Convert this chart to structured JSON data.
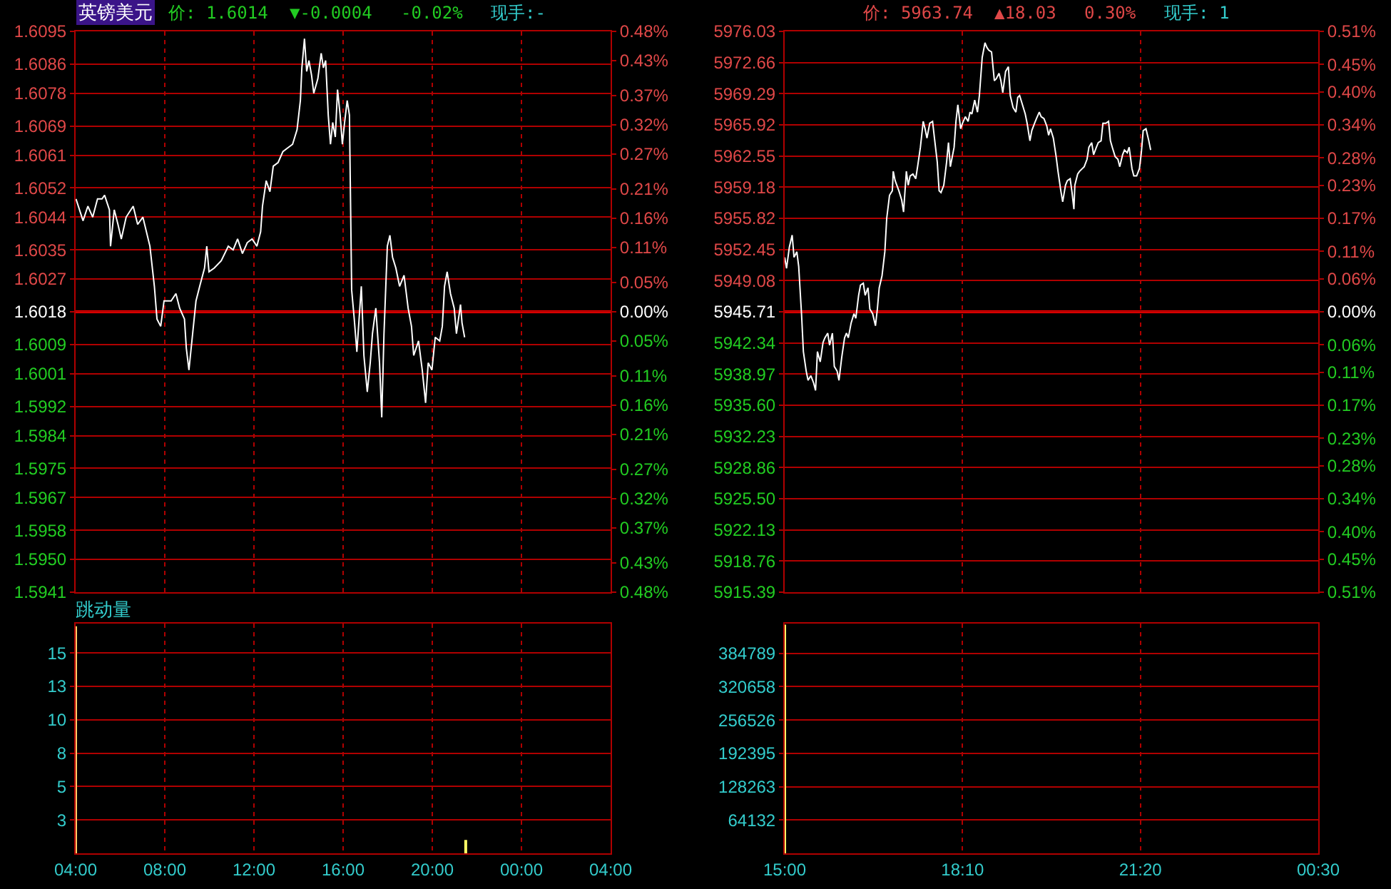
{
  "chart_data": [
    {
      "type": "line",
      "title": "英镑美元",
      "annotations": [
        "价: 1.6014",
        "▼-0.0004",
        "-0.02%",
        "现手:-"
      ],
      "x": [
        "--01-01T04:01",
        "--01-01T04:20",
        "--01-01T04:33",
        "--01-01T04:46",
        "--01-01T04:59",
        "--01-01T05:11",
        "--01-01T05:18",
        "--01-01T05:31",
        "--01-01T05:34",
        "--01-01T05:44",
        "--01-01T05:54",
        "--01-01T06:03",
        "--01-01T06:16",
        "--01-01T06:35",
        "--01-01T06:47",
        "--01-01T07:01",
        "--01-01T07:20",
        "--01-01T07:32",
        "--01-01T07:39",
        "--01-01T07:49",
        "--01-01T07:58",
        "--01-01T08:17",
        "--01-01T08:30",
        "--01-01T08:40",
        "--01-01T08:53",
        "--01-01T08:58",
        "--01-01T09:05",
        "--01-01T09:15",
        "--01-01T09:24",
        "--01-01T09:34",
        "--01-01T09:47",
        "--01-01T09:53",
        "--01-01T09:59",
        "--01-01T10:13",
        "--01-01T10:32",
        "--01-01T10:51",
        "--01-01T11:04",
        "--01-01T11:16",
        "--01-01T11:29",
        "--01-01T11:42",
        "--01-01T11:55",
        "--01-01T12:08",
        "--01-01T12:18",
        "--01-01T12:23",
        "--01-01T12:33",
        "--01-01T12:43",
        "--01-01T12:52",
        "--01-01T13:05",
        "--01-01T13:18",
        "--01-01T13:31",
        "--01-01T13:44",
        "--01-01T13:56",
        "--01-01T14:05",
        "--01-01T14:09",
        "--01-01T14:16",
        "--01-01T14:22",
        "--01-01T14:28",
        "--01-01T14:35",
        "--01-01T14:41",
        "--01-01T14:52",
        "--01-01T15:01",
        "--01-01T15:07",
        "--01-01T15:13",
        "--01-01T15:20",
        "--01-01T15:26",
        "--01-01T15:32",
        "--01-01T15:39",
        "--01-01T15:45",
        "--01-01T15:52",
        "--01-01T15:58",
        "--01-01T16:04",
        "--01-01T16:11",
        "--01-01T16:17",
        "--01-01T16:23",
        "--01-01T16:30",
        "--01-01T16:37",
        "--01-01T16:49",
        "--01-01T16:56",
        "--01-01T17:05",
        "--01-01T17:13",
        "--01-01T17:19",
        "--01-01T17:28",
        "--01-01T17:38",
        "--01-01T17:44",
        "--01-01T17:50",
        "--01-01T17:59",
        "--01-01T18:06",
        "--01-01T18:13",
        "--01-01T18:22",
        "--01-01T18:32",
        "--01-01T18:44",
        "--01-01T18:55",
        "--01-01T19:04",
        "--01-01T19:10",
        "--01-01T19:23",
        "--01-01T19:33",
        "--01-01T19:42",
        "--01-01T19:49",
        "--01-01T19:59",
        "--01-01T20:08",
        "--01-01T20:20",
        "--01-01T20:27",
        "--01-01T20:33",
        "--01-01T20:40",
        "--01-01T20:49",
        "--01-01T20:59",
        "--01-01T21:05",
        "--01-01T21:16",
        "--01-01T21:20",
        "--01-01T21:27"
      ],
      "series": [
        {
          "color": "#ffffff",
          "values": [
            1.6049,
            1.6043,
            1.6047,
            1.6044,
            1.6049,
            1.6049,
            1.605,
            1.6046,
            1.6036,
            1.6046,
            1.6042,
            1.6038,
            1.6044,
            1.6047,
            1.6042,
            1.6044,
            1.6036,
            1.6025,
            1.6016,
            1.6014,
            1.6021,
            1.6021,
            1.6023,
            1.6019,
            1.6016,
            1.6008,
            1.6002,
            1.6012,
            1.6021,
            1.6025,
            1.603,
            1.6036,
            1.6029,
            1.603,
            1.6032,
            1.6036,
            1.6035,
            1.6038,
            1.6034,
            1.6037,
            1.6038,
            1.6036,
            1.604,
            1.6047,
            1.6054,
            1.6051,
            1.6058,
            1.6059,
            1.6062,
            1.6063,
            1.6064,
            1.6068,
            1.6076,
            1.6085,
            1.6093,
            1.6084,
            1.6087,
            1.6083,
            1.6078,
            1.6082,
            1.6089,
            1.6085,
            1.6087,
            1.6072,
            1.6064,
            1.607,
            1.6066,
            1.6079,
            1.6072,
            1.6064,
            1.607,
            1.6076,
            1.6072,
            1.6024,
            1.6016,
            1.6007,
            1.6025,
            1.6006,
            1.5996,
            1.6004,
            1.6012,
            1.6019,
            1.6004,
            1.5989,
            1.6012,
            1.6036,
            1.6039,
            1.6033,
            1.603,
            1.6025,
            1.6028,
            1.6019,
            1.6014,
            1.6006,
            1.601,
            1.6002,
            1.5993,
            1.6004,
            1.6002,
            1.6011,
            1.601,
            1.6014,
            1.6025,
            1.6029,
            1.6023,
            1.6019,
            1.6012,
            1.602,
            1.6015,
            1.6011
          ]
        }
      ],
      "xlim": [
        "--01-01T04:00",
        "--01-02T04:00"
      ],
      "xticks": [
        {
          "value": "--01-01T04:00",
          "label": "04:00"
        },
        {
          "value": "--01-01T08:00",
          "label": "08:00"
        },
        {
          "value": "--01-01T12:00",
          "label": "12:00"
        },
        {
          "value": "--01-01T16:00",
          "label": "16:00"
        },
        {
          "value": "--01-01T20:00",
          "label": "20:00"
        },
        {
          "value": "--01-02T00:00",
          "label": "00:00"
        },
        {
          "value": "--01-02T04:00",
          "label": "04:00"
        }
      ],
      "ylim": [
        1.5941,
        1.6095
      ],
      "yticks": [
        1.6095,
        1.6086,
        1.6078,
        1.6069,
        1.6061,
        1.6052,
        1.6044,
        1.6035,
        1.6027,
        1.6018,
        1.6009,
        1.6001,
        1.5992,
        1.5984,
        1.5975,
        1.5967,
        1.5958,
        {
          "value": 1.595,
          "label": "1.5950"
        },
        1.5941
      ],
      "y2lim": [
        -0.48,
        0.48
      ],
      "y2ticks": [
        {
          "value": 0.48,
          "label": "0.48%"
        },
        {
          "value": 0.43,
          "label": "0.43%"
        },
        {
          "value": 0.37,
          "label": "0.37%"
        },
        {
          "value": 0.32,
          "label": "0.32%"
        },
        {
          "value": 0.27,
          "label": "0.27%"
        },
        {
          "value": 0.21,
          "label": "0.21%"
        },
        {
          "value": 0.16,
          "label": "0.16%"
        },
        {
          "value": 0.11,
          "label": "0.11%"
        },
        {
          "value": 0.05,
          "label": "0.05%"
        },
        {
          "value": 0,
          "label": "0.00%"
        },
        {
          "value": -0.05,
          "label": "0.05%"
        },
        {
          "value": -0.11,
          "label": "0.11%"
        },
        {
          "value": -0.16,
          "label": "0.16%"
        },
        {
          "value": -0.21,
          "label": "0.21%"
        },
        {
          "value": -0.27,
          "label": "0.27%"
        },
        {
          "value": -0.32,
          "label": "0.32%"
        },
        {
          "value": -0.37,
          "label": "0.37%"
        },
        {
          "value": -0.43,
          "label": "0.43%"
        },
        {
          "value": -0.48,
          "label": "0.48%"
        }
      ],
      "ref_lines": [
        {
          "axis": "y",
          "value": 1.6018,
          "color": "#ff0000"
        }
      ],
      "grid": true,
      "tick_labels": "y"
    },
    {
      "type": "bar",
      "title": "跳动量",
      "x": [
        "--01-01T04:00",
        "--01-01T21:30"
      ],
      "values": [
        17,
        1
      ],
      "colors": [
        "#ffcc66",
        "#ffff66"
      ],
      "xlim": [
        "--01-01T04:00",
        "--01-02T04:00"
      ],
      "xticks": [
        {
          "value": "--01-01T04:00",
          "label": "04:00"
        },
        {
          "value": "--01-01T08:00",
          "label": "08:00"
        },
        {
          "value": "--01-01T12:00",
          "label": "12:00"
        },
        {
          "value": "--01-01T16:00",
          "label": "16:00"
        },
        {
          "value": "--01-01T20:00",
          "label": "20:00"
        },
        {
          "value": "--01-02T00:00",
          "label": "00:00"
        },
        {
          "value": "--01-02T04:00",
          "label": "04:00"
        }
      ],
      "ylim": [
        0,
        17.2
      ],
      "yticks": [
        {
          "value": 2.5,
          "label": "3"
        },
        5,
        {
          "value": 7.5,
          "label": "8"
        },
        10,
        {
          "value": 12.5,
          "label": "13"
        },
        15
      ],
      "grid": true
    },
    {
      "type": "line",
      "annotations": [
        "价: 5963.74",
        "▲18.03",
        "0.30%",
        "现手: 1"
      ],
      "x": [
        "--01-01T15:00",
        "--01-01T15:02",
        "--01-01T15:05",
        "--01-01T15:08",
        "--01-01T15:10",
        "--01-01T15:13",
        "--01-01T15:15",
        "--01-01T15:18",
        "--01-01T15:20",
        "--01-01T15:23",
        "--01-01T15:25",
        "--01-01T15:28",
        "--01-01T15:31",
        "--01-01T15:33",
        "--01-01T15:35",
        "--01-01T15:38",
        "--01-01T15:41",
        "--01-01T15:43",
        "--01-01T15:46",
        "--01-01T15:48",
        "--01-01T15:51",
        "--01-01T15:53",
        "--01-01T15:56",
        "--01-01T15:58",
        "--01-01T16:01",
        "--01-01T16:04",
        "--01-01T16:06",
        "--01-01T16:08",
        "--01-01T16:11",
        "--01-01T16:14",
        "--01-01T16:16",
        "--01-01T16:19",
        "--01-01T16:21",
        "--01-01T16:24",
        "--01-01T16:26",
        "--01-01T16:29",
        "--01-01T16:31",
        "--01-01T16:34",
        "--01-01T16:37",
        "--01-01T16:39",
        "--01-01T16:41",
        "--01-01T16:44",
        "--01-01T16:47",
        "--01-01T16:49",
        "--01-01T16:52",
        "--01-01T16:55",
        "--01-01T16:56",
        "--01-01T16:58",
        "--01-01T17:02",
        "--01-01T17:05",
        "--01-01T17:07",
        "--01-01T17:10",
        "--01-01T17:12",
        "--01-01T17:14",
        "--01-01T17:17",
        "--01-01T17:20",
        "--01-01T17:22",
        "--01-01T17:25",
        "--01-01T17:28",
        "--01-01T17:30",
        "--01-01T17:32",
        "--01-01T17:35",
        "--01-01T17:38",
        "--01-01T17:40",
        "--01-01T17:43",
        "--01-01T17:45",
        "--01-01T17:47",
        "--01-01T17:50",
        "--01-01T17:53",
        "--01-01T17:55",
        "--01-01T17:57",
        "--01-01T18:01",
        "--01-01T18:03",
        "--01-01T18:05",
        "--01-01T18:08",
        "--01-01T18:10",
        "--01-01T18:13",
        "--01-01T18:16",
        "--01-01T18:18",
        "--01-01T18:20",
        "--01-01T18:23",
        "--01-01T18:26",
        "--01-01T18:28",
        "--01-01T18:31",
        "--01-01T18:34",
        "--01-01T18:36",
        "--01-01T18:38",
        "--01-01T18:41",
        "--01-01T18:44",
        "--01-01T18:46",
        "--01-01T18:49",
        "--01-01T18:51",
        "--01-01T18:53",
        "--01-01T18:56",
        "--01-01T18:59",
        "--01-01T19:01",
        "--01-01T19:04",
        "--01-01T19:07",
        "--01-01T19:09",
        "--01-01T19:11",
        "--01-01T19:14",
        "--01-01T19:17",
        "--01-01T19:19",
        "--01-01T19:22",
        "--01-01T19:24",
        "--01-01T19:27",
        "--01-01T19:29",
        "--01-01T19:32",
        "--01-01T19:34",
        "--01-01T19:37",
        "--01-01T19:40",
        "--01-01T19:42",
        "--01-01T19:44",
        "--01-01T19:47",
        "--01-01T19:50",
        "--01-01T19:52",
        "--01-01T19:55",
        "--01-01T19:57",
        "--01-01T20:00",
        "--01-01T20:02",
        "--01-01T20:05",
        "--01-01T20:07",
        "--01-01T20:09",
        "--01-01T20:10",
        "--01-01T20:13",
        "--01-01T20:15",
        "--01-01T20:20",
        "--01-01T20:23",
        "--01-01T20:25",
        "--01-01T20:28",
        "--01-01T20:30",
        "--01-01T20:33",
        "--01-01T20:35",
        "--01-01T20:38",
        "--01-01T20:40",
        "--01-01T20:43",
        "--01-01T20:46",
        "--01-01T20:48",
        "--01-01T20:50",
        "--01-01T20:53",
        "--01-01T20:56",
        "--01-01T20:58",
        "--01-01T21:01",
        "--01-01T21:03",
        "--01-01T21:06",
        "--01-01T21:08",
        "--01-01T21:11",
        "--01-01T21:13",
        "--01-01T21:16",
        "--01-01T21:19",
        "--01-01T21:21",
        "--01-01T21:23",
        "--01-01T21:26",
        "--01-01T21:29",
        "--01-01T21:31"
      ],
      "series": [
        {
          "color": "#ffffff",
          "values": [
            5951.6,
            5950.4,
            5952.7,
            5954.0,
            5951.6,
            5952.2,
            5950.6,
            5945.5,
            5941.4,
            5939.3,
            5938.3,
            5938.8,
            5938.0,
            5937.2,
            5941.4,
            5940.3,
            5942.4,
            5942.9,
            5943.4,
            5942.1,
            5943.4,
            5939.8,
            5939.3,
            5938.3,
            5940.8,
            5942.9,
            5943.4,
            5942.9,
            5944.5,
            5945.5,
            5945.0,
            5947.5,
            5948.6,
            5948.8,
            5947.5,
            5948.3,
            5946.0,
            5945.5,
            5944.2,
            5946.0,
            5948.3,
            5949.6,
            5952.2,
            5955.8,
            5958.3,
            5958.8,
            5960.9,
            5959.9,
            5958.8,
            5957.8,
            5956.5,
            5960.9,
            5959.4,
            5960.4,
            5960.6,
            5960.1,
            5961.4,
            5963.5,
            5966.3,
            5965.5,
            5964.5,
            5966.1,
            5966.3,
            5964.5,
            5961.9,
            5958.8,
            5958.6,
            5959.4,
            5961.9,
            5964.0,
            5961.4,
            5963.5,
            5966.3,
            5968.1,
            5965.5,
            5966.1,
            5966.8,
            5966.3,
            5967.3,
            5967.1,
            5968.6,
            5967.3,
            5969.1,
            5973.2,
            5974.8,
            5974.3,
            5974.0,
            5973.8,
            5970.7,
            5970.9,
            5971.5,
            5970.7,
            5969.4,
            5971.7,
            5972.2,
            5969.1,
            5967.8,
            5967.3,
            5968.9,
            5969.1,
            5968.1,
            5967.1,
            5966.1,
            5964.2,
            5965.3,
            5966.1,
            5966.6,
            5967.3,
            5966.8,
            5966.6,
            5965.8,
            5964.8,
            5965.5,
            5964.5,
            5962.5,
            5960.9,
            5958.8,
            5957.6,
            5959.4,
            5959.9,
            5960.1,
            5958.6,
            5956.8,
            5959.4,
            5960.6,
            5960.9,
            5961.4,
            5962.2,
            5963.5,
            5964.0,
            5962.7,
            5963.5,
            5964.0,
            5964.2,
            5966.1,
            5966.1,
            5966.3,
            5964.2,
            5963.5,
            5962.5,
            5962.2,
            5961.4,
            5962.7,
            5963.2,
            5962.9,
            5963.5,
            5961.2,
            5960.4,
            5960.4,
            5961.2,
            5962.9,
            5965.3,
            5965.5,
            5964.2,
            5963.2
          ]
        }
      ],
      "xlim": [
        "--01-01T15:00",
        "--01-02T00:30"
      ],
      "xticks": [
        {
          "value": "--01-01T15:00",
          "label": "15:00"
        },
        {
          "value": "--01-01T18:10",
          "label": "18:10"
        },
        {
          "value": "--01-01T21:20",
          "label": "21:20"
        },
        {
          "value": "--01-02T00:30",
          "label": "00:30"
        }
      ],
      "ylim": [
        5915.39,
        5976.03
      ],
      "yticks": [
        5976.03,
        5972.66,
        5969.29,
        5965.92,
        5962.55,
        5959.18,
        5955.82,
        5952.45,
        5949.08,
        5945.71,
        5942.34,
        5938.97,
        {
          "value": 5935.6,
          "label": "5935.60"
        },
        5932.23,
        5928.86,
        {
          "value": 5925.5,
          "label": "5925.50"
        },
        5922.13,
        5918.76,
        5915.39
      ],
      "y2lim": [
        -0.51,
        0.51
      ],
      "y2ticks": [
        {
          "value": 0.51,
          "label": "0.51%"
        },
        {
          "value": 0.45,
          "label": "0.45%"
        },
        {
          "value": 0.4,
          "label": "0.40%"
        },
        {
          "value": 0.34,
          "label": "0.34%"
        },
        {
          "value": 0.28,
          "label": "0.28%"
        },
        {
          "value": 0.23,
          "label": "0.23%"
        },
        {
          "value": 0.17,
          "label": "0.17%"
        },
        {
          "value": 0.11,
          "label": "0.11%"
        },
        {
          "value": 0.06,
          "label": "0.06%"
        },
        {
          "value": 0,
          "label": "0.00%"
        },
        {
          "value": -0.06,
          "label": "0.06%"
        },
        {
          "value": -0.11,
          "label": "0.11%"
        },
        {
          "value": -0.17,
          "label": "0.17%"
        },
        {
          "value": -0.23,
          "label": "0.23%"
        },
        {
          "value": -0.28,
          "label": "0.28%"
        },
        {
          "value": -0.34,
          "label": "0.34%"
        },
        {
          "value": -0.4,
          "label": "0.40%"
        },
        {
          "value": -0.45,
          "label": "0.45%"
        },
        {
          "value": -0.51,
          "label": "0.51%"
        }
      ],
      "ref_lines": [
        {
          "axis": "y",
          "value": 5945.71,
          "color": "#ff0000"
        }
      ],
      "grid": true,
      "tick_labels": "y"
    },
    {
      "type": "bar",
      "x": [
        "--01-01T15:00"
      ],
      "values": [
        440000
      ],
      "colors": [
        "#ffff66"
      ],
      "xlim": [
        "--01-01T15:00",
        "--01-02T00:30"
      ],
      "xticks": [
        {
          "value": "--01-01T15:00",
          "label": "15:00"
        },
        {
          "value": "--01-01T18:10",
          "label": "18:10"
        },
        {
          "value": "--01-01T21:20",
          "label": "21:20"
        },
        {
          "value": "--01-02T00:30",
          "label": "00:30"
        }
      ],
      "ylim": [
        0,
        442000
      ],
      "yticks": [
        64132,
        128263,
        192395,
        256526,
        320658,
        384789
      ],
      "grid": true
    }
  ]
}
